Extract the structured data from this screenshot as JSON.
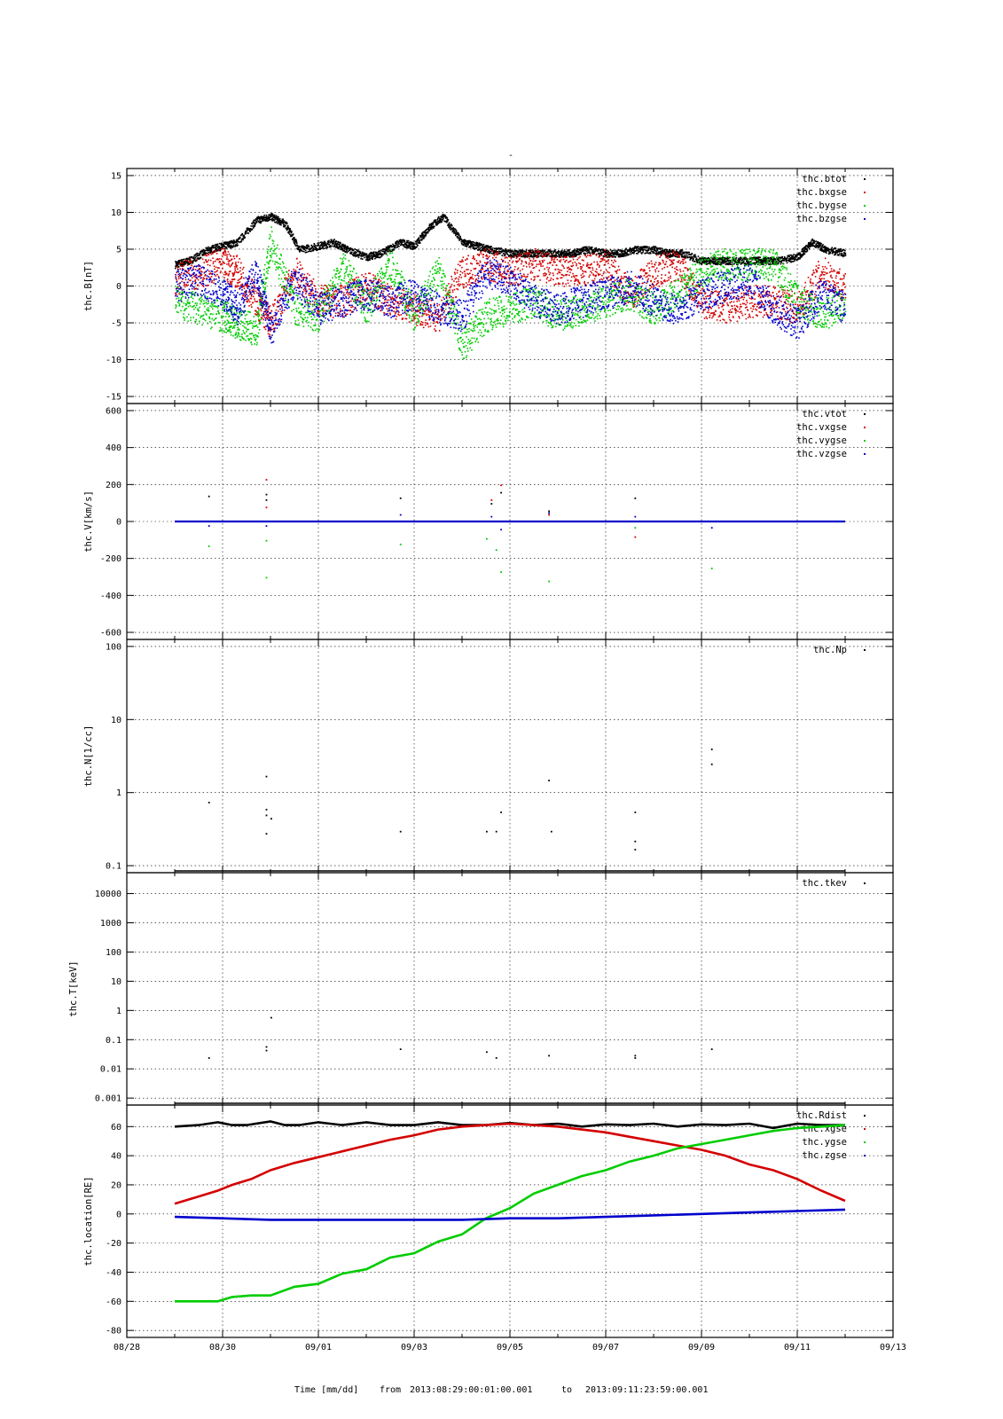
{
  "figure": {
    "title": "-",
    "xlabel": "Time [mm/dd]",
    "from_label": "from",
    "from_value": "2013:08:29:00:01:00.001",
    "to_label": "to",
    "to_value": "2013:09:11:23:59:00.001"
  },
  "colors": {
    "black": "#000000",
    "red": "#d40000",
    "green": "#00cc00",
    "blue": "#0000cc"
  },
  "chart_data": [
    {
      "type": "scatter",
      "ylabel": "thc.B[nT]",
      "ylim": [
        -15,
        15
      ],
      "yticks": [
        "-15",
        "-10",
        "-5",
        "0",
        "5",
        "10",
        "15"
      ],
      "xlim": [
        "2013-08-28",
        "2013-09-13"
      ],
      "xticks": [
        "08/28",
        "08/30",
        "09/01",
        "09/03",
        "09/05",
        "09/07",
        "09/09",
        "09/11",
        "09/13"
      ],
      "grid": true,
      "legend_position": "top-right",
      "series": [
        {
          "name": "thc.btot",
          "color": "black",
          "x": [
            0,
            0.3,
            0.7,
            1,
            1.3,
            1.7,
            2,
            2.3,
            2.6,
            3,
            3.3,
            3.6,
            4,
            4.3,
            4.7,
            5,
            5.3,
            5.6,
            6,
            6.3,
            6.6,
            7,
            7.3,
            7.6,
            8,
            8.3,
            8.6,
            9,
            9.3,
            9.6,
            10,
            10.3,
            10.6,
            11,
            11.3,
            11.6,
            12,
            12.3,
            12.6,
            13,
            13.3,
            13.6,
            14
          ],
          "y": [
            3,
            3.5,
            5,
            5.5,
            6,
            9,
            9.5,
            8.5,
            5,
            5.5,
            6,
            5,
            4,
            4.5,
            6,
            5.5,
            8,
            9.5,
            6,
            5.5,
            5,
            4.5,
            4.5,
            4.5,
            4.5,
            4.5,
            5,
            4.5,
            4.5,
            5,
            5,
            4.5,
            4.5,
            3.5,
            3.5,
            3.5,
            3.5,
            3.5,
            3.5,
            4,
            6,
            5,
            4.5
          ]
        },
        {
          "name": "thc.bxgse",
          "color": "red",
          "x": [
            0,
            0.5,
            1,
            1.3,
            1.7,
            2,
            2.5,
            3,
            3.5,
            4,
            4.5,
            5,
            5.5,
            6,
            6.5,
            7,
            7.5,
            8,
            8.5,
            9,
            9.5,
            10,
            10.5,
            11,
            11.5,
            12,
            12.5,
            13,
            13.5,
            14
          ],
          "y": [
            1,
            2,
            3,
            2,
            -2,
            -5,
            2,
            -2,
            -2,
            0,
            -2,
            -3,
            -4,
            2,
            3,
            2,
            3,
            2,
            2,
            3,
            -1,
            2,
            3,
            -2,
            -3,
            -2,
            -2,
            -3,
            2,
            0
          ]
        },
        {
          "name": "thc.bygse",
          "color": "green",
          "x": [
            0,
            0.5,
            1,
            1.3,
            1.7,
            2,
            2.5,
            3,
            3.5,
            4,
            4.5,
            5,
            5.5,
            6,
            6.5,
            7,
            7.5,
            8,
            8.5,
            9,
            9.5,
            10,
            10.5,
            11,
            11.5,
            12,
            12.5,
            13,
            13.5,
            14
          ],
          "y": [
            -2,
            -3,
            -4,
            -5,
            -6,
            6,
            -3,
            -4,
            3,
            -3,
            3,
            -4,
            2,
            -8,
            -4,
            -3,
            -2,
            -4,
            -3,
            -2,
            -1,
            -3,
            -1,
            2,
            3,
            3,
            3,
            -2,
            -4,
            -2
          ]
        },
        {
          "name": "thc.bzgse",
          "color": "blue",
          "x": [
            0,
            0.5,
            1,
            1.3,
            1.7,
            2,
            2.5,
            3,
            3.5,
            4,
            4.5,
            5,
            5.5,
            6,
            6.5,
            7,
            7.5,
            8,
            8.5,
            9,
            9.5,
            10,
            10.5,
            11,
            11.5,
            12,
            12.5,
            13,
            13.5,
            14
          ],
          "y": [
            0,
            1,
            -1,
            -3,
            2,
            -6,
            1,
            -3,
            -2,
            -1,
            -2,
            -1,
            -3,
            -4,
            2,
            1,
            -2,
            -3,
            -2,
            -1,
            0,
            -2,
            -3,
            -1,
            0,
            1,
            -3,
            -5,
            -1,
            -3
          ]
        }
      ]
    },
    {
      "type": "scatter",
      "ylabel": "thc.V[km/s]",
      "ylim": [
        -600,
        600
      ],
      "yticks": [
        "-600",
        "-400",
        "-200",
        "0",
        "200",
        "400",
        "600"
      ],
      "xlim": [
        "2013-08-28",
        "2013-09-13"
      ],
      "grid": true,
      "legend_position": "top-right",
      "series": [
        {
          "name": "thc.vtot",
          "color": "black",
          "x": [
            0.7,
            1.9,
            1.9,
            4.7,
            6.6,
            6.8,
            7.8,
            9.6
          ],
          "y": [
            140,
            150,
            120,
            130,
            100,
            160,
            60,
            130
          ]
        },
        {
          "name": "thc.vxgse",
          "color": "red",
          "x": [
            1.9,
            1.9,
            6.6,
            6.8,
            7.8,
            9.6
          ],
          "y": [
            230,
            80,
            120,
            200,
            40,
            -80
          ]
        },
        {
          "name": "thc.vygse",
          "color": "green",
          "x": [
            0.7,
            1.9,
            1.9,
            4.7,
            6.5,
            6.7,
            6.8,
            7.8,
            9.6,
            11.2
          ],
          "y": [
            -130,
            -300,
            -100,
            -120,
            -90,
            -150,
            -270,
            -320,
            -30,
            -250
          ]
        },
        {
          "name": "thc.vzgse",
          "color": "blue",
          "x": [
            0.7,
            1.9,
            4.7,
            6.6,
            6.8,
            7.8,
            9.6,
            11.2
          ],
          "y": [
            -20,
            -20,
            40,
            30,
            -40,
            50,
            30,
            -30
          ]
        }
      ]
    },
    {
      "type": "scatter",
      "ylabel": "thc.N[1/cc]",
      "yscale": "log",
      "ylim": [
        0.1,
        100
      ],
      "yticks": [
        "0.1",
        "1",
        "10",
        "100"
      ],
      "xlim": [
        "2013-08-28",
        "2013-09-13"
      ],
      "grid": true,
      "legend_position": "top-right",
      "series": [
        {
          "name": "thc.Np",
          "color": "black",
          "x": [
            0.7,
            1.9,
            1.9,
            1.9,
            1.9,
            2.0,
            4.7,
            6.5,
            6.7,
            6.8,
            7.8,
            7.85,
            9.6,
            9.6,
            9.6,
            11.2,
            11.2
          ],
          "y": [
            0.75,
            1.7,
            0.6,
            0.5,
            0.28,
            0.45,
            0.3,
            0.3,
            0.3,
            0.55,
            1.5,
            0.3,
            0.55,
            0.22,
            0.17,
            4,
            2.5
          ]
        }
      ]
    },
    {
      "type": "scatter",
      "ylabel": "thc.T[keV]",
      "yscale": "log",
      "ylim": [
        0.001,
        30000
      ],
      "yticks": [
        "0.001",
        "0.01",
        "0.1",
        "1",
        "10",
        "100",
        "1000",
        "10000"
      ],
      "xlim": [
        "2013-08-28",
        "2013-09-13"
      ],
      "grid": true,
      "legend_position": "top-right",
      "series": [
        {
          "name": "thc.tkev",
          "color": "black",
          "x": [
            0.7,
            1.9,
            1.9,
            2.0,
            4.7,
            6.5,
            6.7,
            7.8,
            9.6,
            9.6,
            11.2
          ],
          "y": [
            0.025,
            0.06,
            0.045,
            0.6,
            0.05,
            0.04,
            0.025,
            0.03,
            0.03,
            0.025,
            0.05
          ]
        }
      ]
    },
    {
      "type": "line",
      "ylabel": "thc.location[RE]",
      "ylim": [
        -80,
        70
      ],
      "yticks": [
        "-80",
        "-60",
        "-40",
        "-20",
        "0",
        "20",
        "40",
        "60"
      ],
      "xlim": [
        "2013-08-28",
        "2013-09-13"
      ],
      "grid": true,
      "legend_position": "top-right",
      "series": [
        {
          "name": "thc.Rdist",
          "color": "black",
          "x": [
            0,
            0.5,
            0.9,
            1.2,
            1.5,
            2.0,
            2.3,
            2.6,
            3.0,
            3.5,
            4.0,
            4.5,
            5.0,
            5.5,
            6.0,
            6.5,
            7.0,
            7.5,
            8.0,
            8.5,
            9.0,
            9.5,
            10.0,
            10.5,
            11.0,
            11.5,
            12.0,
            12.5,
            13.0,
            13.5,
            14.0
          ],
          "y": [
            60,
            61,
            63,
            61,
            61,
            63.5,
            61,
            61,
            63,
            61,
            63,
            61,
            61,
            63,
            61,
            61,
            62.5,
            61,
            62,
            60,
            61.5,
            61,
            62,
            60,
            61.5,
            61,
            62,
            59,
            62,
            61,
            61
          ]
        },
        {
          "name": "thc.xgse",
          "color": "red",
          "x": [
            0,
            0.5,
            0.9,
            1.2,
            1.6,
            2.0,
            2.5,
            3.0,
            3.5,
            4.0,
            4.5,
            5.0,
            5.5,
            6.0,
            6.5,
            7.0,
            7.5,
            8.0,
            8.5,
            9.0,
            9.5,
            10.0,
            10.5,
            11.0,
            11.5,
            12.0,
            12.5,
            13.0,
            13.5,
            14.0
          ],
          "y": [
            7,
            12,
            16,
            20,
            24,
            30,
            35,
            39,
            43,
            47,
            51,
            54,
            58,
            60,
            61,
            62,
            61,
            60,
            58,
            56,
            53,
            50,
            47,
            44,
            40,
            34,
            30,
            24,
            16,
            9
          ]
        },
        {
          "name": "thc.ygse",
          "color": "green",
          "x": [
            0,
            0.5,
            0.9,
            1.2,
            1.6,
            2.0,
            2.5,
            3.0,
            3.5,
            4.0,
            4.5,
            5.0,
            5.5,
            6.0,
            6.5,
            7.0,
            7.5,
            8.0,
            8.5,
            9.0,
            9.5,
            10.0,
            10.5,
            11.0,
            11.5,
            12.0,
            12.5,
            13.0,
            13.5,
            14.0
          ],
          "y": [
            -60,
            -60,
            -60,
            -57,
            -56,
            -56,
            -50,
            -48,
            -41,
            -38,
            -30,
            -27,
            -19,
            -14,
            -3,
            4,
            14,
            20,
            26,
            30,
            36,
            40,
            45,
            48,
            51,
            54,
            57,
            59,
            60,
            61
          ]
        },
        {
          "name": "thc.zgse",
          "color": "blue",
          "x": [
            0,
            1,
            2,
            3,
            4,
            5,
            6,
            7,
            8,
            9,
            10,
            11,
            12,
            13,
            14
          ],
          "y": [
            -2,
            -3,
            -4,
            -4,
            -4,
            -4,
            -4,
            -3,
            -3,
            -2,
            -1,
            0,
            1,
            2,
            3
          ]
        }
      ]
    }
  ]
}
